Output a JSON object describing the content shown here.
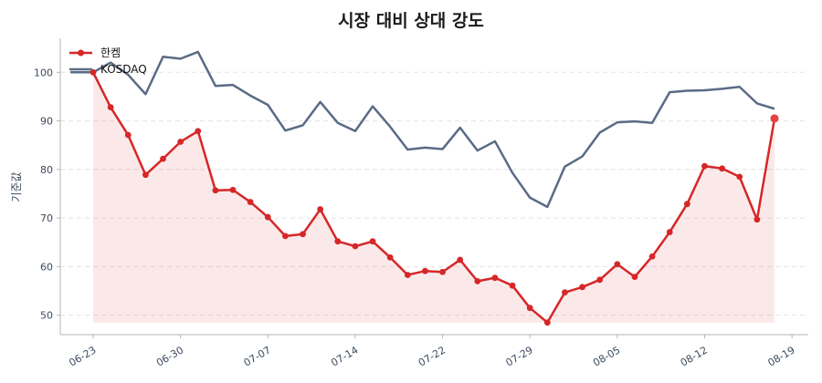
{
  "chart_data": {
    "type": "line",
    "title": "시장 대비 상대 강도",
    "xlabel": "",
    "ylabel": "기준값",
    "ylim": [
      46,
      107
    ],
    "yticks": [
      50,
      60,
      70,
      80,
      90,
      100
    ],
    "xtick_labels": [
      "06-23",
      "06-30",
      "07-07",
      "07-14",
      "07-22",
      "07-29",
      "08-05",
      "08-12",
      "08-19"
    ],
    "grid": "horizontal dashed",
    "legend": "top-left",
    "series": [
      {
        "name": "한켐",
        "color": "#d62728",
        "style": "line-with-markers, shaded area below",
        "x": [
          0,
          1,
          2,
          3,
          4,
          5,
          6,
          7,
          8,
          9,
          10,
          11,
          12,
          13,
          14,
          15,
          16,
          17,
          18,
          19,
          20,
          21,
          22,
          23,
          24,
          25,
          26,
          27,
          28,
          29,
          30,
          31,
          32,
          33,
          34,
          35,
          36,
          37,
          38,
          39
        ],
        "values": [
          100,
          92.8,
          87.1,
          78.9,
          82.2,
          85.7,
          87.9,
          75.7,
          75.8,
          73.3,
          70.2,
          66.3,
          66.7,
          71.8,
          65.2,
          64.2,
          65.2,
          61.9,
          58.3,
          59.1,
          58.9,
          61.4,
          57.0,
          57.7,
          56.1,
          51.5,
          48.5,
          54.7,
          55.8,
          57.3,
          60.5,
          57.9,
          62.1,
          67.1,
          72.9,
          80.7,
          80.2,
          78.5,
          69.7,
          90.5
        ]
      },
      {
        "name": "KOSDAQ",
        "color": "#5a6b85",
        "style": "line",
        "x": [
          -1.3,
          0,
          1,
          2,
          3,
          4,
          5,
          6,
          7,
          8,
          9,
          10,
          11,
          12,
          13,
          14,
          15,
          16,
          17,
          18,
          19,
          20,
          21,
          22,
          23,
          24,
          25,
          26,
          27,
          28,
          29,
          30,
          31,
          32,
          33,
          34,
          35,
          36,
          37,
          38,
          39
        ],
        "values": [
          100,
          100,
          102,
          99.5,
          95.5,
          103.2,
          102.8,
          104.2,
          97.2,
          97.4,
          95.2,
          93.3,
          88.0,
          89.1,
          93.9,
          89.6,
          87.9,
          93.0,
          88.8,
          84.1,
          84.5,
          84.2,
          88.6,
          83.9,
          85.8,
          79.3,
          74.2,
          72.3,
          80.6,
          82.7,
          87.6,
          89.7,
          89.9,
          89.6,
          95.9,
          96.2,
          96.3,
          96.6,
          97.0,
          93.6,
          92.5
        ]
      }
    ]
  }
}
